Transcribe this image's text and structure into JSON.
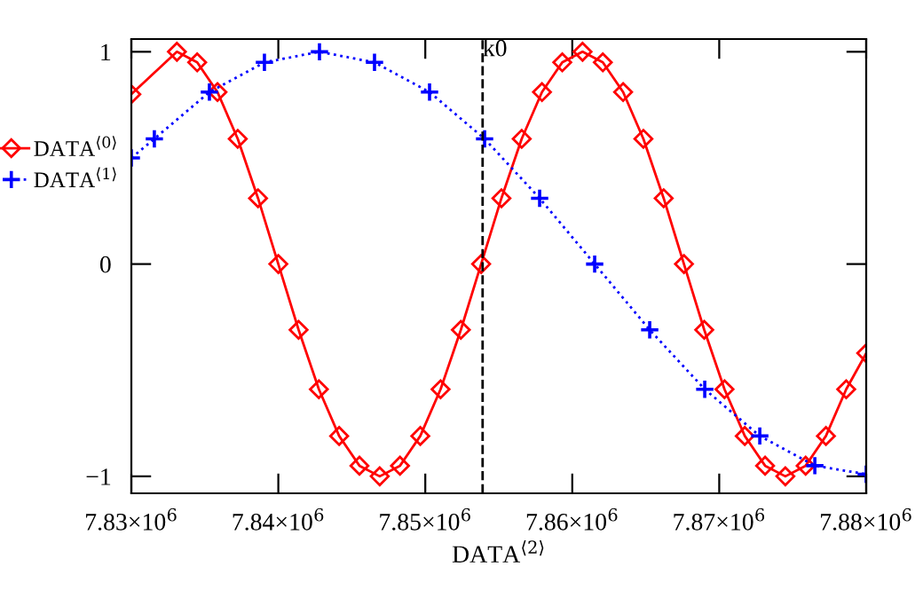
{
  "chart_data": {
    "type": "line",
    "xlabel": "DATA$^{⟨2⟩}$",
    "series": [
      {
        "name": "DATA$^{⟨0⟩}$",
        "color": "#ff0000",
        "marker": "diamond",
        "x": [
          7830000,
          7833100,
          7834480,
          7835860,
          7837240,
          7838620,
          7840000,
          7841380,
          7842760,
          7844140,
          7845520,
          7846900,
          7848280,
          7849660,
          7851040,
          7852420,
          7853800,
          7855180,
          7856560,
          7857940,
          7859320,
          7860700,
          7862080,
          7863460,
          7864840,
          7866220,
          7867600,
          7868980,
          7870360,
          7871740,
          7873120,
          7874500,
          7875880,
          7877260,
          7878640,
          7880000
        ],
        "values": [
          0.8,
          1,
          0.95,
          0.81,
          0.59,
          0.31,
          0,
          -0.31,
          -0.59,
          -0.81,
          -0.95,
          -1,
          -0.95,
          -0.81,
          -0.59,
          -0.31,
          0,
          0.31,
          0.59,
          0.81,
          0.95,
          1,
          0.95,
          0.81,
          0.59,
          0.31,
          0,
          -0.31,
          -0.59,
          -0.81,
          -0.95,
          -1,
          -0.95,
          -0.81,
          -0.59,
          -0.42
        ]
      },
      {
        "name": "DATA$^{⟨1⟩}$",
        "color": "#0000ff",
        "marker": "cross",
        "line_style": "dotted",
        "x": [
          7830000,
          7831565,
          7835310,
          7839055,
          7842800,
          7846545,
          7850290,
          7854035,
          7857780,
          7861525,
          7865270,
          7869015,
          7872760,
          7876505,
          7880000
        ],
        "values": [
          0.5,
          0.59,
          0.81,
          0.95,
          1,
          0.95,
          0.81,
          0.59,
          0.31,
          0,
          -0.31,
          -0.59,
          -0.81,
          -0.95,
          -0.99
        ]
      }
    ],
    "xlim": [
      7830000,
      7880000
    ],
    "xticks": [
      {
        "value": 7830000,
        "label": "7.83×10$^{6}$"
      },
      {
        "value": 7840000,
        "label": "7.84×10$^{6}$"
      },
      {
        "value": 7850000,
        "label": "7.85×10$^{6}$"
      },
      {
        "value": 7860000,
        "label": "7.86×10$^{6}$"
      },
      {
        "value": 7870000,
        "label": "7.87×10$^{6}$"
      },
      {
        "value": 7880000,
        "label": "7.88×10$^{6}$"
      }
    ],
    "ylim": [
      -1.08,
      1.06
    ],
    "yticks": [
      1,
      0,
      -1
    ],
    "ref_lines": [
      {
        "axis": "x",
        "value": 7853900,
        "label": "k0",
        "color": "#000000",
        "line_style": "dashed"
      }
    ],
    "legend": "left",
    "grid": false
  }
}
